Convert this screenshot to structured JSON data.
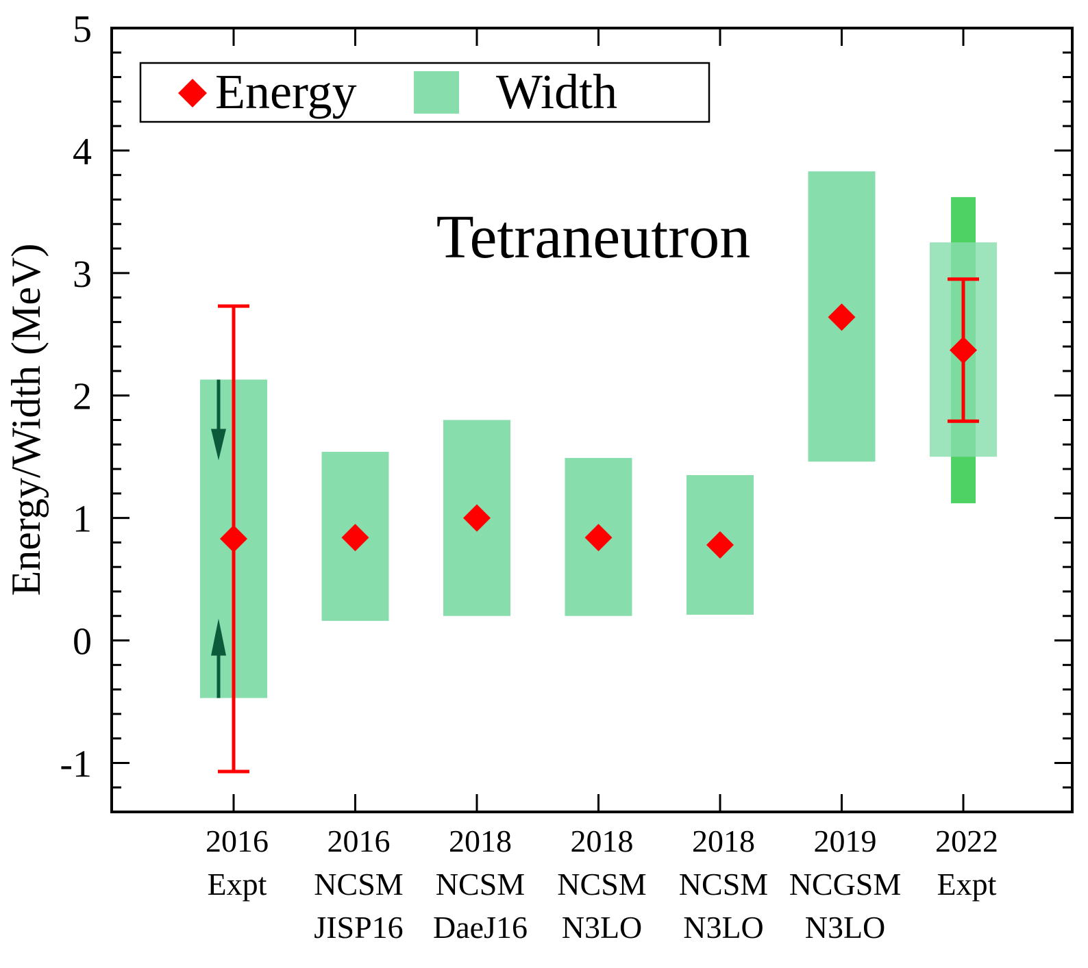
{
  "chart_data": {
    "type": "scatter",
    "title": "Tetraneutron",
    "ylabel": "Energy/Width (MeV)",
    "xlabel": "",
    "ylim": [
      -1.4,
      5
    ],
    "yticks": [
      -1,
      0,
      1,
      2,
      3,
      4,
      5
    ],
    "ytick_labels": [
      "-1",
      "0",
      "1",
      "2",
      "3",
      "4",
      "5"
    ],
    "legend": {
      "position": "top-left",
      "entries": [
        {
          "label": "Energy",
          "marker": "diamond",
          "color": "#ff0000"
        },
        {
          "label": "Width",
          "marker": "box",
          "color": "#88ddac"
        }
      ]
    },
    "categories": [
      {
        "lines": [
          "2016",
          "Expt"
        ],
        "energy": 0.83,
        "width_low": -0.47,
        "width_high": 2.13,
        "err_low": -1.07,
        "err_high": 2.73,
        "upper_limit_arrows": true
      },
      {
        "lines": [
          "2016",
          "NCSM",
          "JISP16"
        ],
        "energy": 0.84,
        "width_low": 0.16,
        "width_high": 1.54
      },
      {
        "lines": [
          "2018",
          "NCSM",
          "DaeJ16"
        ],
        "energy": 1.0,
        "width_low": 0.2,
        "width_high": 1.8
      },
      {
        "lines": [
          "2018",
          "NCSM",
          "N3LO"
        ],
        "energy": 0.84,
        "width_low": 0.2,
        "width_high": 1.49
      },
      {
        "lines": [
          "2018",
          "NCSM",
          "N3LO"
        ],
        "energy": 0.78,
        "width_low": 0.21,
        "width_high": 1.35
      },
      {
        "lines": [
          "2019",
          "NCGSM",
          "N3LO"
        ],
        "energy": 2.64,
        "width_low": 1.46,
        "width_high": 3.83
      },
      {
        "lines": [
          "2022",
          "Expt"
        ],
        "energy": 2.37,
        "width_low": 1.5,
        "width_high": 3.25,
        "err_low": 1.79,
        "err_high": 2.95,
        "width_sys_low": 1.12,
        "width_sys_high": 3.62
      }
    ],
    "colors": {
      "energy": "#ff0000",
      "width": "#88ddac",
      "width_sys": "#4ed263",
      "arrow": "#0b5a3a",
      "axis": "#000000"
    }
  }
}
